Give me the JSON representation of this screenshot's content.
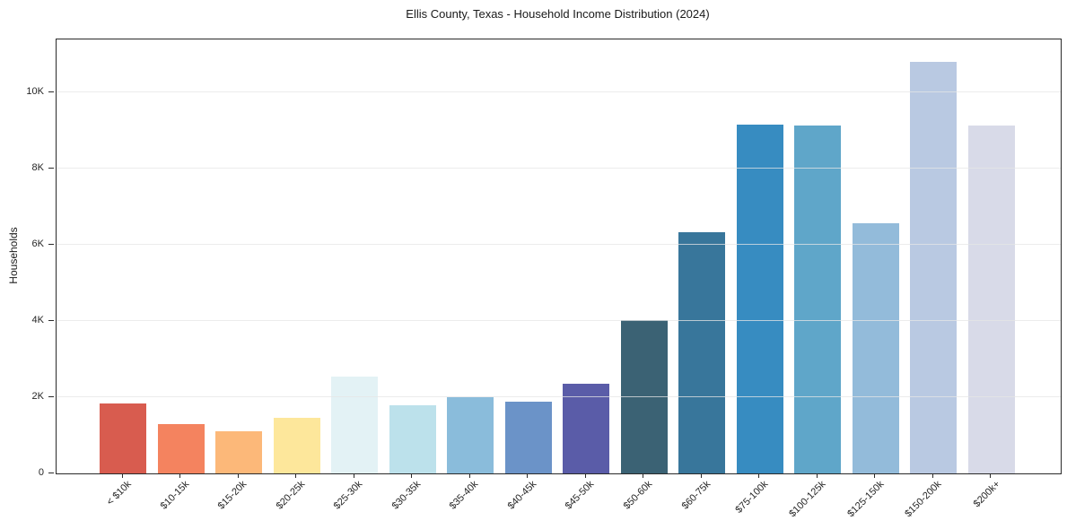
{
  "chart_data": {
    "type": "bar",
    "title": "Ellis County, Texas - Household Income Distribution (2024)",
    "xlabel": "",
    "ylabel": "Households",
    "categories": [
      "< $10k",
      "$10-15k",
      "$15-20k",
      "$20-25k",
      "$25-30k",
      "$30-35k",
      "$35-40k",
      "$40-45k",
      "$45-50k",
      "$50-60k",
      "$60-75k",
      "$75-100k",
      "$100-125k",
      "$125-150k",
      "$150-200k",
      "$200k+"
    ],
    "values": [
      1840,
      1290,
      1110,
      1460,
      2540,
      1790,
      2000,
      1890,
      2360,
      4030,
      6330,
      9150,
      9130,
      6570,
      10800,
      9140
    ],
    "bar_colors": [
      "#d85c4f",
      "#f4835f",
      "#fcb879",
      "#fde79b",
      "#e3f2f5",
      "#bce1eb",
      "#8abcdb",
      "#6b93c8",
      "#5a5ca8",
      "#3b6274",
      "#38769b",
      "#378cc1",
      "#5fa6c9",
      "#93bbda",
      "#b9c9e2",
      "#d8dae8"
    ],
    "ylim": [
      0,
      11390
    ],
    "yticks": [
      {
        "v": 0,
        "label": "0"
      },
      {
        "v": 2000,
        "label": "2K"
      },
      {
        "v": 4000,
        "label": "4K"
      },
      {
        "v": 6000,
        "label": "6K"
      },
      {
        "v": 8000,
        "label": "8K"
      },
      {
        "v": 10000,
        "label": "10K"
      }
    ],
    "x_tick_rotation_deg": 45,
    "grid": "horizontal lines at y ticks, drawn over bars",
    "legend": "none",
    "background_color": "#ffffff",
    "axis_color": "#2a2a2a",
    "gridline_color": "#e5e5e5",
    "tick_label_color": "#262626"
  }
}
